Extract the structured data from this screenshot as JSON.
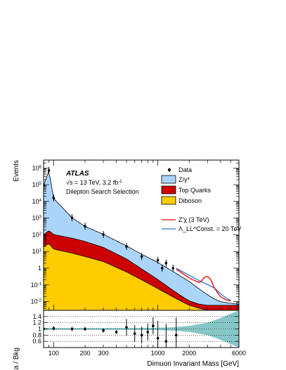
{
  "chart_data": {
    "type": "area",
    "xlabel": "Dimuon Invariant Mass [GeV]",
    "ylabel": "Events",
    "ratio_ylabel": "Data / Bkg",
    "x_scale": "log",
    "xlim": [
      80,
      6000
    ],
    "ylim": [
      0.003,
      3000000
    ],
    "ratio_ylim": [
      0.4,
      1.6
    ],
    "x_ticks": [
      "100",
      "200",
      "300",
      "1000",
      "2000",
      "6000"
    ],
    "y_ticks": [
      "10^{-2}",
      "10^{-1}",
      "1",
      "10",
      "10^{2}",
      "10^{3}",
      "10^{4}",
      "10^{5}",
      "10^{6}"
    ],
    "ratio_y_ticks": [
      "0.6",
      "0.8",
      "1",
      "1.2",
      "1.4"
    ],
    "annotations": {
      "experiment": "ATLAS",
      "energy": "√s = 13 TeV, 3.2 fb",
      "lumi_exp": "-1",
      "selection": "Dilepton Search Selection"
    },
    "legend": {
      "placement": "top-right",
      "data": "Data",
      "dy": "Z/γ*",
      "top": "Top Quarks",
      "diboson": "Diboson",
      "zprime": "Z'χ (3 TeV)",
      "ci": "Λ_LL^Const. = 20 TeV"
    },
    "colors": {
      "dy": "#aad4fa",
      "top": "#cc0000",
      "diboson": "#ffcc00",
      "zprime": "#ff0000",
      "ci": "#1f77d0",
      "band": "#5fb3b3"
    },
    "series": [
      {
        "name": "Diboson",
        "x": [
          80,
          90,
          100,
          150,
          200,
          300,
          500,
          700,
          1000,
          1500,
          2000,
          2500,
          3000
        ],
        "values": [
          20,
          30,
          14,
          8,
          5,
          2.5,
          0.6,
          0.2,
          0.06,
          0.015,
          0.006,
          0.004,
          0.003
        ]
      },
      {
        "name": "Top Quarks",
        "x": [
          80,
          90,
          100,
          150,
          200,
          300,
          500,
          700,
          1000,
          1500,
          2000,
          2500,
          3000
        ],
        "values": [
          80,
          150,
          90,
          55,
          35,
          15,
          3,
          0.7,
          0.15,
          0.02,
          0.005,
          0.003,
          0.003
        ]
      },
      {
        "name": "Z/γ*",
        "x": [
          80,
          90,
          100,
          150,
          200,
          300,
          500,
          700,
          1000,
          1500,
          2000,
          2500,
          3000,
          4000,
          5000,
          6000
        ],
        "values": [
          90000,
          700000,
          15000,
          1000,
          280,
          90,
          18,
          6,
          2,
          0.45,
          0.15,
          0.05,
          0.02,
          0.004,
          0.002,
          0.001
        ]
      },
      {
        "name": "Z'χ (3 TeV)",
        "x": [
          1500,
          2000,
          2500,
          2800,
          3000,
          3200,
          3500,
          4000,
          4500,
          5000
        ],
        "values": [
          0.4,
          0.1,
          0.08,
          0.25,
          0.3,
          0.2,
          0.05,
          0.01,
          0.004,
          0.003
        ]
      },
      {
        "name": "Λ_LL^Const. = 20 TeV",
        "x": [
          1500,
          2000,
          2500,
          3000,
          3500,
          4000,
          4500,
          5000
        ],
        "values": [
          0.5,
          0.22,
          0.12,
          0.08,
          0.05,
          0.02,
          0.008,
          0.004
        ]
      },
      {
        "name": "Data",
        "x": [
          80,
          90,
          100,
          150,
          200,
          300,
          500,
          700,
          1000,
          1100,
          1200,
          1400
        ],
        "values": [
          95000,
          720000,
          16000,
          1050,
          330,
          105,
          20,
          5,
          3,
          1,
          2,
          1
        ]
      }
    ],
    "ratio": {
      "x": [
        80,
        100,
        150,
        200,
        300,
        400,
        500,
        600,
        700,
        800,
        900,
        1000,
        1200,
        1500
      ],
      "values": [
        1.0,
        1.02,
        1.0,
        1.0,
        0.95,
        0.9,
        1.05,
        0.85,
        0.8,
        0.9,
        1.1,
        0.7,
        0.6,
        0.8
      ]
    }
  }
}
